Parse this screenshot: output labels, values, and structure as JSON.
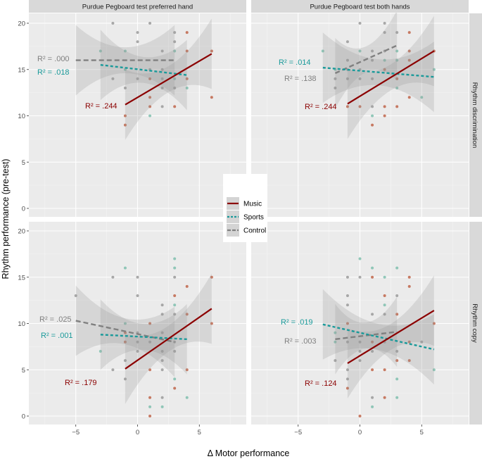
{
  "chart_data": {
    "type": "scatter",
    "xlabel": "Δ Motor performance",
    "ylabel": "Rhythm performance (pre-test)",
    "xlim": [
      -8.8,
      8.8
    ],
    "ylim": [
      -0.9,
      21
    ],
    "x_ticks": [
      "−5",
      "0",
      "5"
    ],
    "x_tick_values": [
      -5,
      0,
      5
    ],
    "y_ticks": [
      "0",
      "5",
      "10",
      "15",
      "20"
    ],
    "y_tick_values": [
      0,
      5,
      10,
      15,
      20
    ],
    "grid": true,
    "legend": {
      "placement": "center",
      "entries": [
        {
          "key": "music",
          "name": "Music",
          "color": "#8b0000",
          "point_color": "#c0654a",
          "linetype": "solid"
        },
        {
          "key": "sports",
          "name": "Sports",
          "color": "#1a9a9a",
          "point_color": "#7fbfae",
          "linetype": "dashed"
        },
        {
          "key": "control",
          "name": "Control",
          "color": "#808080",
          "point_color": "#9a9a9a",
          "linetype": "longdash"
        }
      ]
    },
    "column_strips": [
      "Purdue Pegboard test preferred hand",
      "Purdue Pegboard test both hands"
    ],
    "row_strips": [
      "Rhythm discrimination",
      "Rhythm copy"
    ],
    "panels": [
      {
        "row": 0,
        "col": 0,
        "fits": {
          "control": {
            "x": [
              -5,
              3
            ],
            "y": [
              16.0,
              16.0
            ],
            "r2": "R² = .000"
          },
          "sports": {
            "x": [
              -3,
              4
            ],
            "y": [
              15.5,
              14.4
            ],
            "r2": "R² = .018"
          },
          "music": {
            "x": [
              -1,
              6
            ],
            "y": [
              11.2,
              16.7
            ],
            "r2": "R² = .244"
          }
        },
        "points": [
          [
            -2,
            20,
            "control"
          ],
          [
            1,
            20,
            "control"
          ],
          [
            0,
            19,
            "control"
          ],
          [
            3,
            19,
            "control"
          ],
          [
            4,
            19,
            "music"
          ],
          [
            0,
            18,
            "control"
          ],
          [
            3,
            18,
            "control"
          ],
          [
            -3,
            17,
            "sports"
          ],
          [
            -1,
            17,
            "sports"
          ],
          [
            2,
            17,
            "control"
          ],
          [
            3,
            17,
            "sports"
          ],
          [
            4,
            17,
            "music"
          ],
          [
            6,
            17,
            "music"
          ],
          [
            1,
            15,
            "control"
          ],
          [
            2,
            15,
            "control"
          ],
          [
            -1,
            15,
            "sports"
          ],
          [
            -2,
            14,
            "control"
          ],
          [
            0,
            14,
            "control"
          ],
          [
            1,
            14,
            "music"
          ],
          [
            2,
            14,
            "control"
          ],
          [
            3,
            14,
            "sports"
          ],
          [
            4,
            14,
            "music"
          ],
          [
            -1,
            13,
            "control"
          ],
          [
            2,
            13,
            "control"
          ],
          [
            3,
            13,
            "control"
          ],
          [
            4,
            13,
            "sports"
          ],
          [
            1,
            12,
            "music"
          ],
          [
            6,
            12,
            "music"
          ],
          [
            1,
            11,
            "music"
          ],
          [
            2,
            11,
            "control"
          ],
          [
            3,
            11,
            "music"
          ],
          [
            -1,
            10,
            "music"
          ],
          [
            1,
            10,
            "sports"
          ],
          [
            -1,
            9,
            "music"
          ]
        ]
      },
      {
        "row": 0,
        "col": 1,
        "fits": {
          "control": {
            "x": [
              -2,
              3
            ],
            "y": [
              14.6,
              17.6
            ],
            "r2": "R² = .138"
          },
          "sports": {
            "x": [
              -3,
              6
            ],
            "y": [
              15.2,
              14.2
            ],
            "r2": "R² = .014"
          },
          "music": {
            "x": [
              -1,
              6
            ],
            "y": [
              11.3,
              17.0
            ],
            "r2": "R² = .244"
          }
        },
        "points": [
          [
            0,
            20,
            "control"
          ],
          [
            2,
            20,
            "control"
          ],
          [
            2,
            19,
            "control"
          ],
          [
            3,
            19,
            "control"
          ],
          [
            4,
            19,
            "music"
          ],
          [
            -1,
            18,
            "control"
          ],
          [
            -3,
            17,
            "sports"
          ],
          [
            0,
            17,
            "sports"
          ],
          [
            1,
            17,
            "control"
          ],
          [
            2,
            17,
            "control"
          ],
          [
            3,
            17,
            "sports"
          ],
          [
            4,
            17,
            "music"
          ],
          [
            6,
            17,
            "music"
          ],
          [
            -1,
            16,
            "control"
          ],
          [
            1,
            16,
            "control"
          ],
          [
            2,
            16,
            "sports"
          ],
          [
            3,
            16,
            "sports"
          ],
          [
            4,
            16,
            "music"
          ],
          [
            -2,
            15,
            "sports"
          ],
          [
            -1,
            15,
            "control"
          ],
          [
            0,
            15,
            "control"
          ],
          [
            2,
            15,
            "music"
          ],
          [
            6,
            15,
            "sports"
          ],
          [
            -2,
            14,
            "control"
          ],
          [
            -1,
            14,
            "control"
          ],
          [
            0,
            14,
            "control"
          ],
          [
            1,
            14,
            "control"
          ],
          [
            3,
            14,
            "music"
          ],
          [
            -2,
            13,
            "control"
          ],
          [
            3,
            13,
            "sports"
          ],
          [
            4,
            12,
            "music"
          ],
          [
            5,
            12,
            "sports"
          ],
          [
            -1,
            11,
            "music"
          ],
          [
            0,
            11,
            "music"
          ],
          [
            1,
            11,
            "control"
          ],
          [
            2,
            11,
            "music"
          ],
          [
            3,
            11,
            "music"
          ],
          [
            1,
            10,
            "sports"
          ],
          [
            2,
            10,
            "music"
          ],
          [
            1,
            9,
            "music"
          ]
        ]
      },
      {
        "row": 1,
        "col": 0,
        "fits": {
          "control": {
            "x": [
              -5,
              3
            ],
            "y": [
              10.3,
              8.0
            ],
            "r2": "R² = .025"
          },
          "sports": {
            "x": [
              -3,
              4
            ],
            "y": [
              8.8,
              8.3
            ],
            "r2": "R² = .001"
          },
          "music": {
            "x": [
              -1,
              6
            ],
            "y": [
              5.1,
              11.6
            ],
            "r2": "R² = .179"
          }
        },
        "points": [
          [
            3,
            17,
            "sports"
          ],
          [
            -1,
            16,
            "sports"
          ],
          [
            3,
            16,
            "sports"
          ],
          [
            -2,
            15,
            "control"
          ],
          [
            0,
            15,
            "control"
          ],
          [
            3,
            15,
            "control"
          ],
          [
            6,
            15,
            "music"
          ],
          [
            4,
            14,
            "music"
          ],
          [
            0,
            13,
            "control"
          ],
          [
            3,
            13,
            "music"
          ],
          [
            -5,
            13,
            "control"
          ],
          [
            2,
            12,
            "control"
          ],
          [
            3,
            12,
            "sports"
          ],
          [
            2,
            11,
            "control"
          ],
          [
            3,
            11,
            "control"
          ],
          [
            4,
            11,
            "music"
          ],
          [
            -1,
            10,
            "sports"
          ],
          [
            1,
            10,
            "music"
          ],
          [
            6,
            10,
            "music"
          ],
          [
            -1,
            9,
            "music"
          ],
          [
            0,
            9,
            "control"
          ],
          [
            2,
            9,
            "control"
          ],
          [
            -1,
            8,
            "music"
          ],
          [
            0,
            8,
            "control"
          ],
          [
            1,
            8,
            "control"
          ],
          [
            3,
            8,
            "control"
          ],
          [
            -3,
            7,
            "sports"
          ],
          [
            0,
            7,
            "control"
          ],
          [
            2,
            7,
            "control"
          ],
          [
            3,
            7,
            "control"
          ],
          [
            -1,
            6,
            "control"
          ],
          [
            2,
            6,
            "control"
          ],
          [
            -2,
            5,
            "control"
          ],
          [
            1,
            5,
            "music"
          ],
          [
            2,
            5,
            "control"
          ],
          [
            4,
            5,
            "music"
          ],
          [
            -1,
            4,
            "control"
          ],
          [
            3,
            4,
            "sports"
          ],
          [
            3,
            3,
            "music"
          ],
          [
            1,
            2,
            "music"
          ],
          [
            2,
            2,
            "control"
          ],
          [
            4,
            2,
            "sports"
          ],
          [
            1,
            1,
            "sports"
          ],
          [
            2,
            1,
            "sports"
          ],
          [
            1,
            0,
            "music"
          ]
        ]
      },
      {
        "row": 1,
        "col": 1,
        "fits": {
          "control": {
            "x": [
              -2,
              3
            ],
            "y": [
              8.3,
              9.1
            ],
            "r2": "R² = .003"
          },
          "sports": {
            "x": [
              -3,
              6
            ],
            "y": [
              9.9,
              7.2
            ],
            "r2": "R² = .019"
          },
          "music": {
            "x": [
              -1,
              6
            ],
            "y": [
              5.7,
              11.4
            ],
            "r2": "R² = .124"
          }
        },
        "points": [
          [
            0,
            17,
            "sports"
          ],
          [
            1,
            16,
            "sports"
          ],
          [
            3,
            16,
            "sports"
          ],
          [
            -1,
            15,
            "control"
          ],
          [
            0,
            15,
            "control"
          ],
          [
            1,
            15,
            "music"
          ],
          [
            2,
            15,
            "sports"
          ],
          [
            4,
            15,
            "music"
          ],
          [
            4,
            14,
            "music"
          ],
          [
            -1,
            13,
            "control"
          ],
          [
            2,
            13,
            "music"
          ],
          [
            3,
            13,
            "control"
          ],
          [
            -1,
            12,
            "control"
          ],
          [
            2,
            12,
            "sports"
          ],
          [
            1,
            11,
            "control"
          ],
          [
            2,
            11,
            "control"
          ],
          [
            3,
            11,
            "music"
          ],
          [
            -1,
            10,
            "music"
          ],
          [
            6,
            10,
            "music"
          ],
          [
            -2,
            9,
            "sports"
          ],
          [
            -2,
            8,
            "sports"
          ],
          [
            -1,
            8,
            "control"
          ],
          [
            0,
            8,
            "control"
          ],
          [
            1,
            8,
            "music"
          ],
          [
            2,
            8,
            "control"
          ],
          [
            4,
            8,
            "music"
          ],
          [
            5,
            8,
            "control"
          ],
          [
            0,
            7,
            "control"
          ],
          [
            1,
            7,
            "control"
          ],
          [
            3,
            7,
            "control"
          ],
          [
            -2,
            6,
            "control"
          ],
          [
            0,
            6,
            "control"
          ],
          [
            3,
            6,
            "music"
          ],
          [
            4,
            6,
            "music"
          ],
          [
            1,
            5,
            "music"
          ],
          [
            2,
            5,
            "music"
          ],
          [
            6,
            5,
            "sports"
          ],
          [
            -1,
            5,
            "control"
          ],
          [
            -1,
            4,
            "control"
          ],
          [
            3,
            4,
            "sports"
          ],
          [
            -1,
            3,
            "music"
          ],
          [
            1,
            2,
            "control"
          ],
          [
            2,
            2,
            "music"
          ],
          [
            3,
            2,
            "sports"
          ],
          [
            1,
            1,
            "sports"
          ],
          [
            0,
            0,
            "music"
          ]
        ]
      }
    ]
  }
}
